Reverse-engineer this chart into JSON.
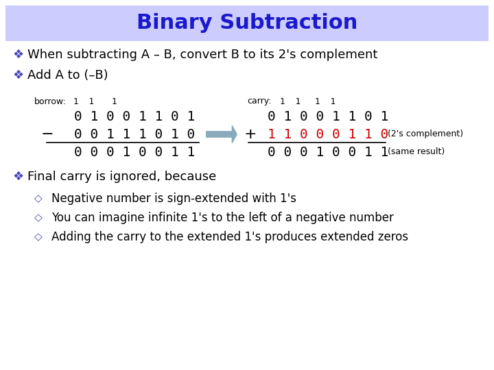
{
  "title": "Binary Subtraction",
  "title_color": "#1a1acc",
  "title_bg": "#ccccff",
  "bg_color": "#ffffff",
  "bullet1": "When subtracting A – B, convert B to its 2's complement",
  "bullet2": "Add A to (–B)",
  "borrow_label": "borrow:",
  "carry_label": "carry:",
  "left_num1": "0 1 0 0 1 1 0 1",
  "left_op": "−",
  "left_num2": "0 0 1 1 1 0 1 0",
  "left_result": "0 0 0 1 0 0 1 1",
  "right_num1": "0 1 0 0 1 1 0 1",
  "right_op": "+",
  "right_num2": "1 1 0 0 0 1 1 0",
  "right_result": "0 0 0 1 0 0 1 1",
  "right_num2_color": "#cc0000",
  "right_num2_label": "(2's complement)",
  "right_result_label": "(same result)",
  "arrow_color": "#88aabb",
  "bullet3": "Final carry is ignored, because",
  "sub1": "Negative number is sign-extended with 1's",
  "sub2": "You can imagine infinite 1's to the left of a negative number",
  "sub3": "Adding the carry to the extended 1's produces extended zeros",
  "diamond_open": "◇",
  "bullet_diamond": "❖",
  "borrow_row": "  1  1         1",
  "carry_row": "  1  1      1  1"
}
